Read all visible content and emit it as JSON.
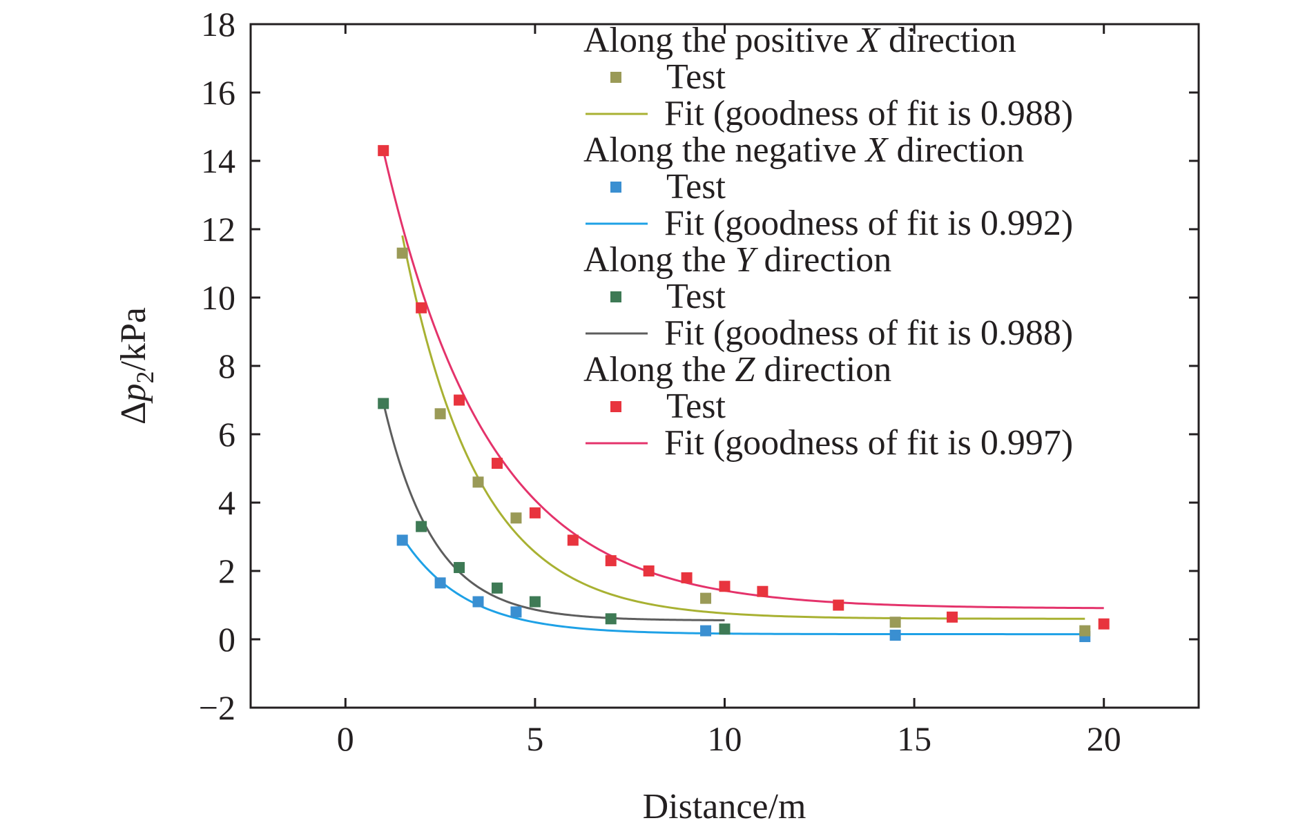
{
  "chart_data": {
    "type": "scatter",
    "xlabel": "Distance/m",
    "ylabel_parts": [
      "Δ",
      "p",
      "2",
      "/kPa"
    ],
    "xlim": [
      -2.5,
      22.5
    ],
    "ylim": [
      -2,
      18
    ],
    "xticks": [
      0,
      5,
      10,
      15,
      20
    ],
    "yticks": [
      -2,
      0,
      2,
      4,
      6,
      8,
      10,
      12,
      14,
      16,
      18
    ],
    "xtick_labels": [
      "0",
      "5",
      "10",
      "15",
      "20"
    ],
    "ytick_labels": [
      "−2",
      "0",
      "2",
      "4",
      "6",
      "8",
      "10",
      "12",
      "14",
      "16",
      "18"
    ],
    "grid": false,
    "legend_position": "top-right",
    "series": [
      {
        "heading_pre": "Along the positive ",
        "heading_axis": "X",
        "heading_post": " direction",
        "test_label": "Test",
        "fit_label": "Fit (goodness of fit is 0.988)",
        "marker_color": "#9a9a57",
        "line_color": "#a8b132",
        "test": {
          "x": [
            1.5,
            2.5,
            3.5,
            4.5,
            9.5,
            14.5,
            19.5
          ],
          "y": [
            11.3,
            6.6,
            4.6,
            3.55,
            1.2,
            0.5,
            0.25
          ]
        },
        "fit": {
          "x_range": [
            1.5,
            19.5
          ],
          "a": 0.6,
          "A": 23.74,
          "k": 0.5
        }
      },
      {
        "heading_pre": "Along the negative ",
        "heading_axis": "X",
        "heading_post": " direction",
        "test_label": "Test",
        "fit_label": "Fit (goodness of fit is 0.992)",
        "marker_color": "#3a8fd1",
        "line_color": "#1ea1e6",
        "test": {
          "x": [
            1.5,
            2.5,
            3.5,
            4.5,
            9.5,
            14.5,
            19.5
          ],
          "y": [
            2.9,
            1.65,
            1.1,
            0.8,
            0.25,
            0.12,
            0.08
          ]
        },
        "fit": {
          "x_range": [
            1.5,
            19.5
          ],
          "a": 0.15,
          "A": 6.97,
          "k": 0.6
        }
      },
      {
        "heading_pre": "Along the ",
        "heading_axis": "Y",
        "heading_post": " direction",
        "test_label": "Test",
        "fit_label": "Fit (goodness of fit is 0.988)",
        "marker_color": "#3e7a55",
        "line_color": "#5d5d5d",
        "test": {
          "x": [
            1,
            2,
            3,
            4,
            5,
            7,
            10
          ],
          "y": [
            6.9,
            3.3,
            2.1,
            1.5,
            1.1,
            0.6,
            0.3
          ]
        },
        "fit": {
          "x_range": [
            1,
            10
          ],
          "a": 0.55,
          "A": 13.5,
          "k": 0.75
        }
      },
      {
        "heading_pre": "Along the ",
        "heading_axis": "Z",
        "heading_post": " direction",
        "test_label": "Test",
        "fit_label": "Fit (goodness of fit is 0.997)",
        "marker_color": "#e8343e",
        "line_color": "#e4336b",
        "test": {
          "x": [
            1,
            2,
            3,
            4,
            5,
            6,
            7,
            8,
            9,
            10,
            11,
            13,
            16,
            20
          ],
          "y": [
            14.3,
            9.7,
            7.0,
            5.15,
            3.7,
            2.9,
            2.3,
            2.0,
            1.8,
            1.55,
            1.4,
            1.0,
            0.65,
            0.45
          ]
        },
        "fit": {
          "x_range": [
            1,
            20
          ],
          "a": 0.9,
          "A": 19.2,
          "k": 0.36
        }
      }
    ]
  }
}
